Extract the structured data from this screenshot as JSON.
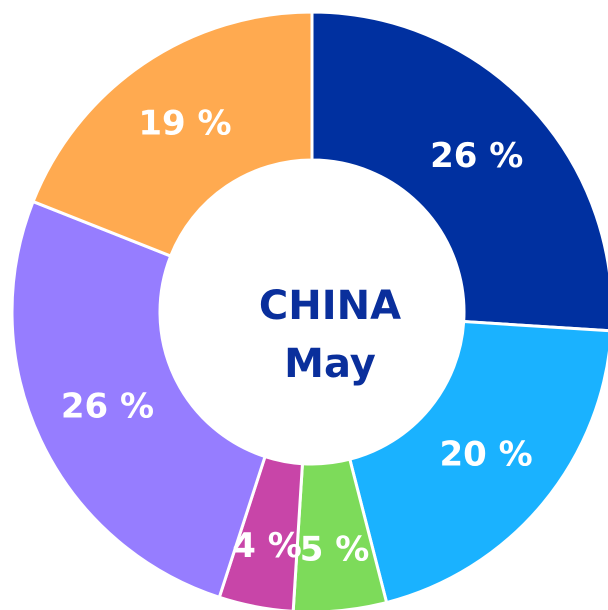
{
  "chart_data": {
    "type": "donut",
    "title": "CHINA",
    "subtitle": "May",
    "values": [
      26,
      20,
      5,
      4,
      26,
      19
    ],
    "value_labels": [
      "26 %",
      "20 %",
      "5 %",
      "4 %",
      "26 %",
      "19 %"
    ],
    "colors": [
      "#0030a0",
      "#1ab2ff",
      "#7ddb5a",
      "#c845a8",
      "#967dff",
      "#ffaa50"
    ]
  }
}
